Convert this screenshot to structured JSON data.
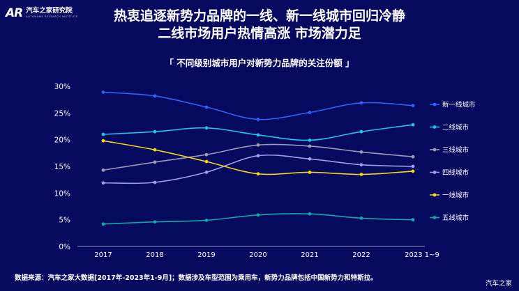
{
  "header": {
    "logo_mark": "AR",
    "logo_cn": "汽车之家研究院",
    "logo_en": "AUTOHOME RESEARCH INSTITUTE",
    "title_line1": "热衷追逐新势力品牌的一线、新一线城市回归冷静",
    "title_line2": "二线市场用户热情高涨 市场潜力足"
  },
  "footer": {
    "source": "数据来源：汽车之家大数据[2017年-2023年1-9月]；数据涉及车型范围为乘用车，新势力品牌包括中国新势力和特斯拉。",
    "watermark": "汽车之家"
  },
  "chart_data": {
    "type": "line",
    "title": "「 不同级别城市用户对新势力品牌的关注份额 」",
    "x": [
      "2017",
      "2018",
      "2019",
      "2020",
      "2021",
      "2022",
      "2023 1~9"
    ],
    "y_ticks": [
      "0%",
      "5%",
      "10%",
      "15%",
      "20%",
      "25%",
      "30%"
    ],
    "ylim": [
      0,
      30
    ],
    "legend_position": "right",
    "grid": false,
    "series": [
      {
        "name": "新一线城市",
        "color": "#2e63f5",
        "values": [
          28.9,
          28.2,
          26.1,
          23.8,
          25.1,
          26.9,
          26.4
        ]
      },
      {
        "name": "二线城市",
        "color": "#21c2ee",
        "values": [
          21.0,
          21.5,
          22.2,
          20.9,
          19.9,
          21.5,
          22.8
        ]
      },
      {
        "name": "三线城市",
        "color": "#9a9ab0",
        "values": [
          14.3,
          15.8,
          17.2,
          19.0,
          18.8,
          17.7,
          16.8
        ]
      },
      {
        "name": "四线城市",
        "color": "#9c9cf2",
        "values": [
          11.9,
          12.0,
          13.9,
          17.0,
          16.4,
          15.3,
          15.0
        ]
      },
      {
        "name": "一线城市",
        "color": "#f3d617",
        "values": [
          19.8,
          18.1,
          15.9,
          13.6,
          13.9,
          13.5,
          14.1
        ]
      },
      {
        "name": "五线城市",
        "color": "#14a7aa",
        "values": [
          4.2,
          4.6,
          4.9,
          5.9,
          6.1,
          5.3,
          5.0
        ]
      }
    ]
  }
}
